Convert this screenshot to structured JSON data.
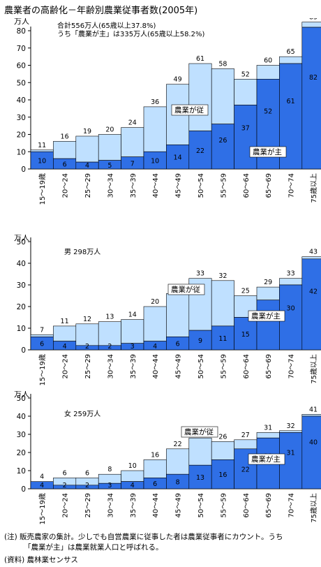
{
  "title": "農業者の高齢化－年齢別農業従事者数(2005年)",
  "note": {
    "line1": "(注) 販売農家の集計。少しでも自営農業に従事した者は農業従事者にカウント。うち",
    "line2": "「農業が主」は農業就業人口と呼ばれる。"
  },
  "source": "(資料) 農林業センサス",
  "colors": {
    "main": "#2f6fe6",
    "sub": "#bfe0ff",
    "border": "#000000"
  },
  "chart_data": [
    {
      "type": "bar",
      "unit": "万人",
      "annotations": [
        "合計556万人(65歳以上37.8%)",
        "うち「農業が主」は335万人(65歳以上58.2%)"
      ],
      "categories": [
        "15～19歳",
        "20～24",
        "25～29",
        "30～34",
        "35～39",
        "40～44",
        "45～49",
        "50～54",
        "55～59",
        "60～64",
        "65～69",
        "70～74",
        "75歳以上"
      ],
      "series": [
        {
          "name": "農業が主",
          "values": [
            10,
            6,
            4,
            5,
            7,
            10,
            14,
            22,
            26,
            37,
            52,
            61,
            82
          ]
        },
        {
          "name": "農業が従",
          "values": [
            1,
            10,
            15,
            15,
            17,
            26,
            35,
            39,
            32,
            15,
            8,
            4,
            3
          ]
        }
      ],
      "totals": [
        11,
        16,
        19,
        20,
        24,
        36,
        49,
        61,
        58,
        52,
        60,
        65,
        85
      ],
      "ylim": [
        0,
        80
      ],
      "yticks": [
        0,
        10,
        20,
        30,
        40,
        50,
        60,
        70,
        80
      ]
    },
    {
      "type": "bar",
      "unit": "万人",
      "annotations": [
        "男 298万人"
      ],
      "categories": [
        "15～19歳",
        "20～24",
        "25～29",
        "30～34",
        "35～39",
        "40～44",
        "45～49",
        "50～54",
        "55～59",
        "60～64",
        "65～69",
        "70～74",
        "75歳以上"
      ],
      "series": [
        {
          "name": "農業が主",
          "values": [
            6,
            4,
            2,
            2,
            3,
            4,
            6,
            9,
            11,
            15,
            23,
            30,
            42
          ]
        },
        {
          "name": "農業が従",
          "values": [
            1,
            7,
            10,
            11,
            11,
            16,
            20,
            24,
            21,
            10,
            6,
            3,
            1
          ]
        }
      ],
      "totals": [
        7,
        11,
        12,
        13,
        14,
        20,
        26,
        33,
        32,
        25,
        29,
        33,
        43
      ],
      "ylim": [
        0,
        50
      ],
      "yticks": [
        0,
        10,
        20,
        30,
        40,
        50
      ]
    },
    {
      "type": "bar",
      "unit": "万人",
      "annotations": [
        "女 259万人"
      ],
      "categories": [
        "15～19歳",
        "20～24",
        "25～29",
        "30～34",
        "35～39",
        "40～44",
        "45～49",
        "50～54",
        "55～59",
        "60～64",
        "65～69",
        "70～74",
        "75歳以上"
      ],
      "series": [
        {
          "name": "農業が主",
          "values": [
            4,
            2,
            2,
            3,
            4,
            6,
            8,
            13,
            16,
            22,
            28,
            31,
            40
          ]
        },
        {
          "name": "農業が従",
          "values": [
            0,
            4,
            4,
            5,
            6,
            10,
            14,
            15,
            10,
            5,
            3,
            1,
            1
          ]
        }
      ],
      "totals": [
        4,
        6,
        6,
        8,
        10,
        16,
        22,
        28,
        26,
        27,
        31,
        32,
        41
      ],
      "ylim": [
        0,
        50
      ],
      "yticks": [
        0,
        10,
        20,
        30,
        40,
        50
      ]
    }
  ]
}
